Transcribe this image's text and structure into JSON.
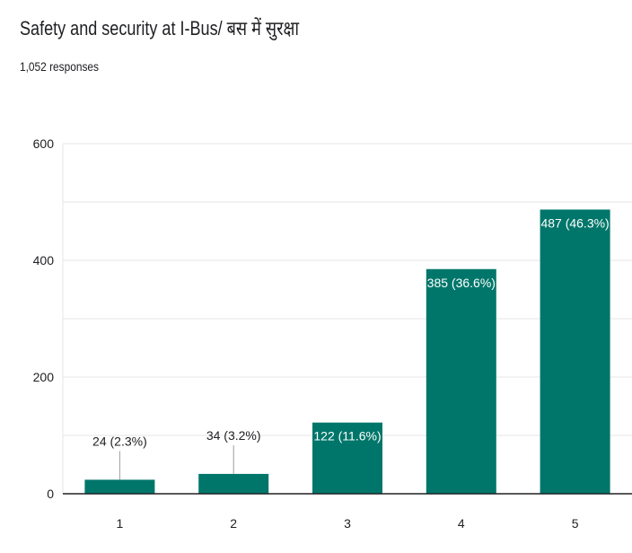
{
  "header": {
    "title": "Safety and security at I-Bus/ बस में सुरक्षा",
    "responses": "1,052 responses"
  },
  "colors": {
    "bar": "#00766a",
    "grid": "#e6e6e6",
    "axis": "#202124",
    "label_inside": "#ffffff",
    "label_outside": "#202124"
  },
  "chart_data": {
    "type": "bar",
    "categories": [
      "1",
      "2",
      "3",
      "4",
      "5"
    ],
    "values": [
      24,
      34,
      122,
      385,
      487
    ],
    "labels": [
      "24 (2.3%)",
      "34 (3.2%)",
      "122 (11.6%)",
      "385 (36.6%)",
      "487 (46.3%)"
    ],
    "yticks": [
      0,
      200,
      400,
      600
    ],
    "ylim": [
      0,
      600
    ],
    "grid": true,
    "legend": "none"
  }
}
